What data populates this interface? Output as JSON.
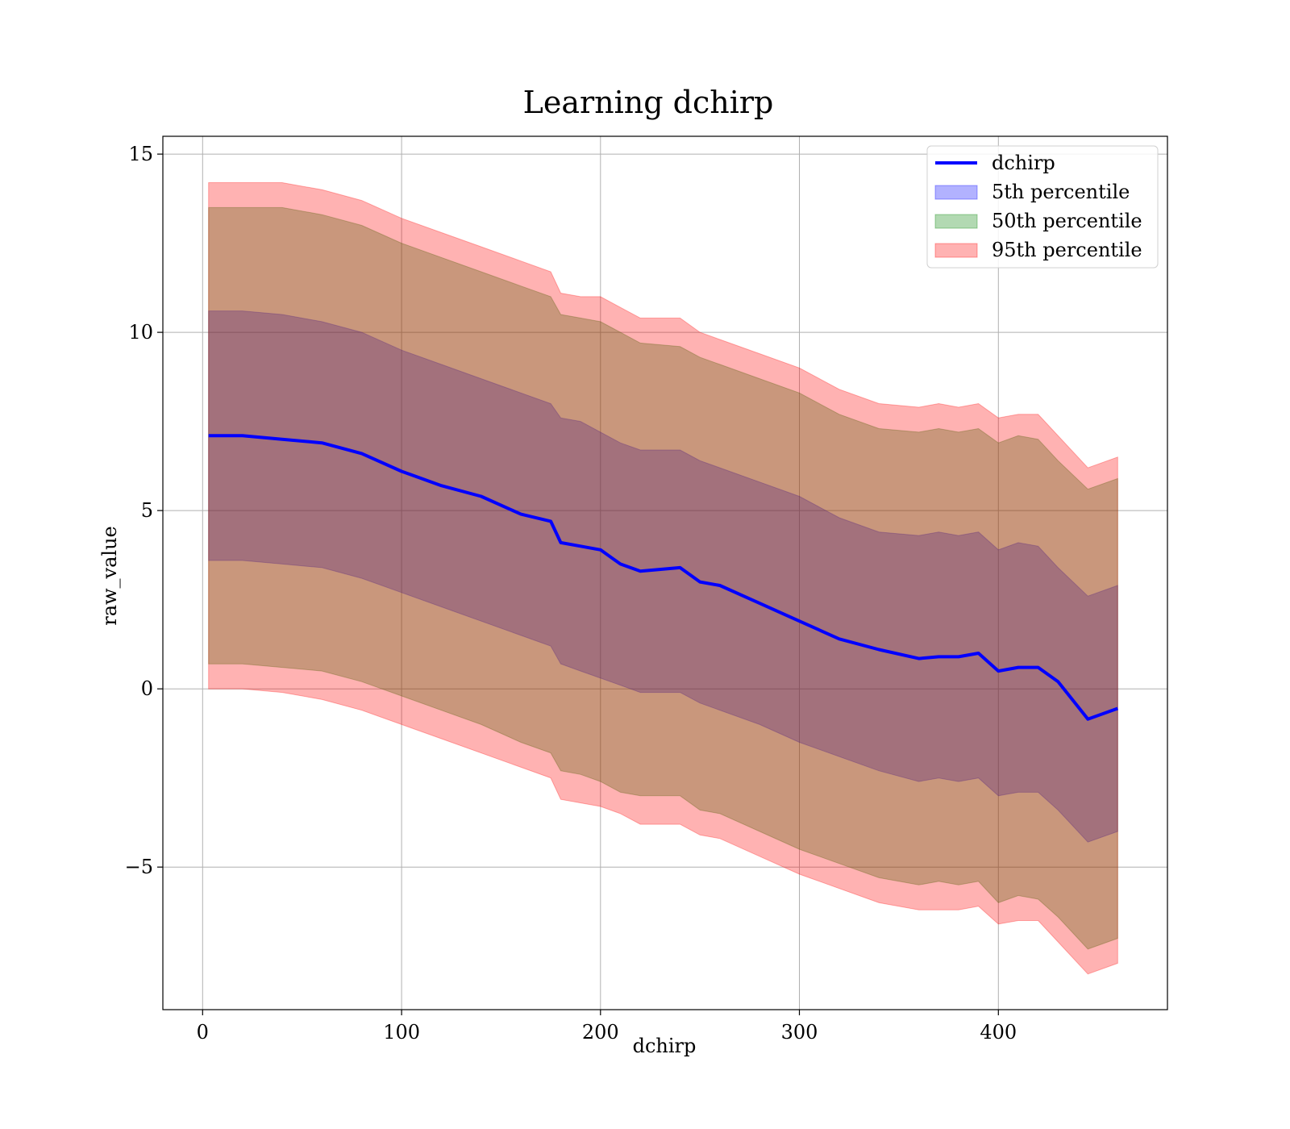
{
  "chart_data": {
    "type": "area",
    "title": "Learning dchirp",
    "xlabel": "dchirp",
    "ylabel": "raw_value",
    "xlim": [
      -20,
      485
    ],
    "ylim": [
      -9,
      15.5
    ],
    "xticks": [
      0,
      100,
      200,
      300,
      400
    ],
    "yticks": [
      -5,
      0,
      5,
      10,
      15
    ],
    "ytick_labels": [
      "−5",
      "0",
      "5",
      "10",
      "15"
    ],
    "xtick_labels": [
      "0",
      "100",
      "200",
      "300",
      "400"
    ],
    "grid": true,
    "legend_position": "top-right",
    "x": [
      3,
      20,
      40,
      60,
      80,
      100,
      120,
      140,
      160,
      175,
      180,
      190,
      200,
      210,
      220,
      240,
      250,
      260,
      280,
      300,
      320,
      340,
      360,
      370,
      380,
      390,
      400,
      410,
      420,
      430,
      445,
      460
    ],
    "series": [
      {
        "name": "dchirp",
        "style": "line",
        "color": "#0000ff",
        "values": [
          7.1,
          7.1,
          7.0,
          6.9,
          6.6,
          6.1,
          5.7,
          5.4,
          4.9,
          4.7,
          4.1,
          4.0,
          3.9,
          3.5,
          3.3,
          3.4,
          3.0,
          2.9,
          2.4,
          1.9,
          1.4,
          1.1,
          0.85,
          0.9,
          0.9,
          1.0,
          0.5,
          0.6,
          0.6,
          0.2,
          -0.85,
          -0.55
        ]
      },
      {
        "name": "5th percentile",
        "style": "band",
        "color": "#0000ff",
        "upper": [
          10.6,
          10.6,
          10.5,
          10.3,
          10.0,
          9.5,
          9.1,
          8.7,
          8.3,
          8.0,
          7.6,
          7.5,
          7.2,
          6.9,
          6.7,
          6.7,
          6.4,
          6.2,
          5.8,
          5.4,
          4.8,
          4.4,
          4.3,
          4.4,
          4.3,
          4.4,
          3.9,
          4.1,
          4.0,
          3.4,
          2.6,
          2.9
        ],
        "lower": [
          3.6,
          3.6,
          3.5,
          3.4,
          3.1,
          2.7,
          2.3,
          1.9,
          1.5,
          1.2,
          0.7,
          0.5,
          0.3,
          0.1,
          -0.1,
          -0.1,
          -0.4,
          -0.6,
          -1.0,
          -1.5,
          -1.9,
          -2.3,
          -2.6,
          -2.5,
          -2.6,
          -2.5,
          -3.0,
          -2.9,
          -2.9,
          -3.4,
          -4.3,
          -4.0
        ]
      },
      {
        "name": "50th percentile",
        "style": "band",
        "color": "#008000",
        "upper": [
          13.5,
          13.5,
          13.5,
          13.3,
          13.0,
          12.5,
          12.1,
          11.7,
          11.3,
          11.0,
          10.5,
          10.4,
          10.3,
          10.0,
          9.7,
          9.6,
          9.3,
          9.1,
          8.7,
          8.3,
          7.7,
          7.3,
          7.2,
          7.3,
          7.2,
          7.3,
          6.9,
          7.1,
          7.0,
          6.4,
          5.6,
          5.9
        ],
        "lower": [
          0.7,
          0.7,
          0.6,
          0.5,
          0.2,
          -0.2,
          -0.6,
          -1.0,
          -1.5,
          -1.8,
          -2.3,
          -2.4,
          -2.6,
          -2.9,
          -3.0,
          -3.0,
          -3.4,
          -3.5,
          -4.0,
          -4.5,
          -4.9,
          -5.3,
          -5.5,
          -5.4,
          -5.5,
          -5.4,
          -6.0,
          -5.8,
          -5.9,
          -6.4,
          -7.3,
          -7.0
        ]
      },
      {
        "name": "95th percentile",
        "style": "band",
        "color": "#ff0000",
        "upper": [
          14.2,
          14.2,
          14.2,
          14.0,
          13.7,
          13.2,
          12.8,
          12.4,
          12.0,
          11.7,
          11.1,
          11.0,
          11.0,
          10.7,
          10.4,
          10.4,
          10.0,
          9.8,
          9.4,
          9.0,
          8.4,
          8.0,
          7.9,
          8.0,
          7.9,
          8.0,
          7.6,
          7.7,
          7.7,
          7.1,
          6.2,
          6.5
        ],
        "lower": [
          0.0,
          0.0,
          -0.1,
          -0.3,
          -0.6,
          -1.0,
          -1.4,
          -1.8,
          -2.2,
          -2.5,
          -3.1,
          -3.2,
          -3.3,
          -3.5,
          -3.8,
          -3.8,
          -4.1,
          -4.2,
          -4.7,
          -5.2,
          -5.6,
          -6.0,
          -6.2,
          -6.2,
          -6.2,
          -6.1,
          -6.6,
          -6.5,
          -6.5,
          -7.1,
          -8.0,
          -7.7
        ]
      }
    ]
  }
}
